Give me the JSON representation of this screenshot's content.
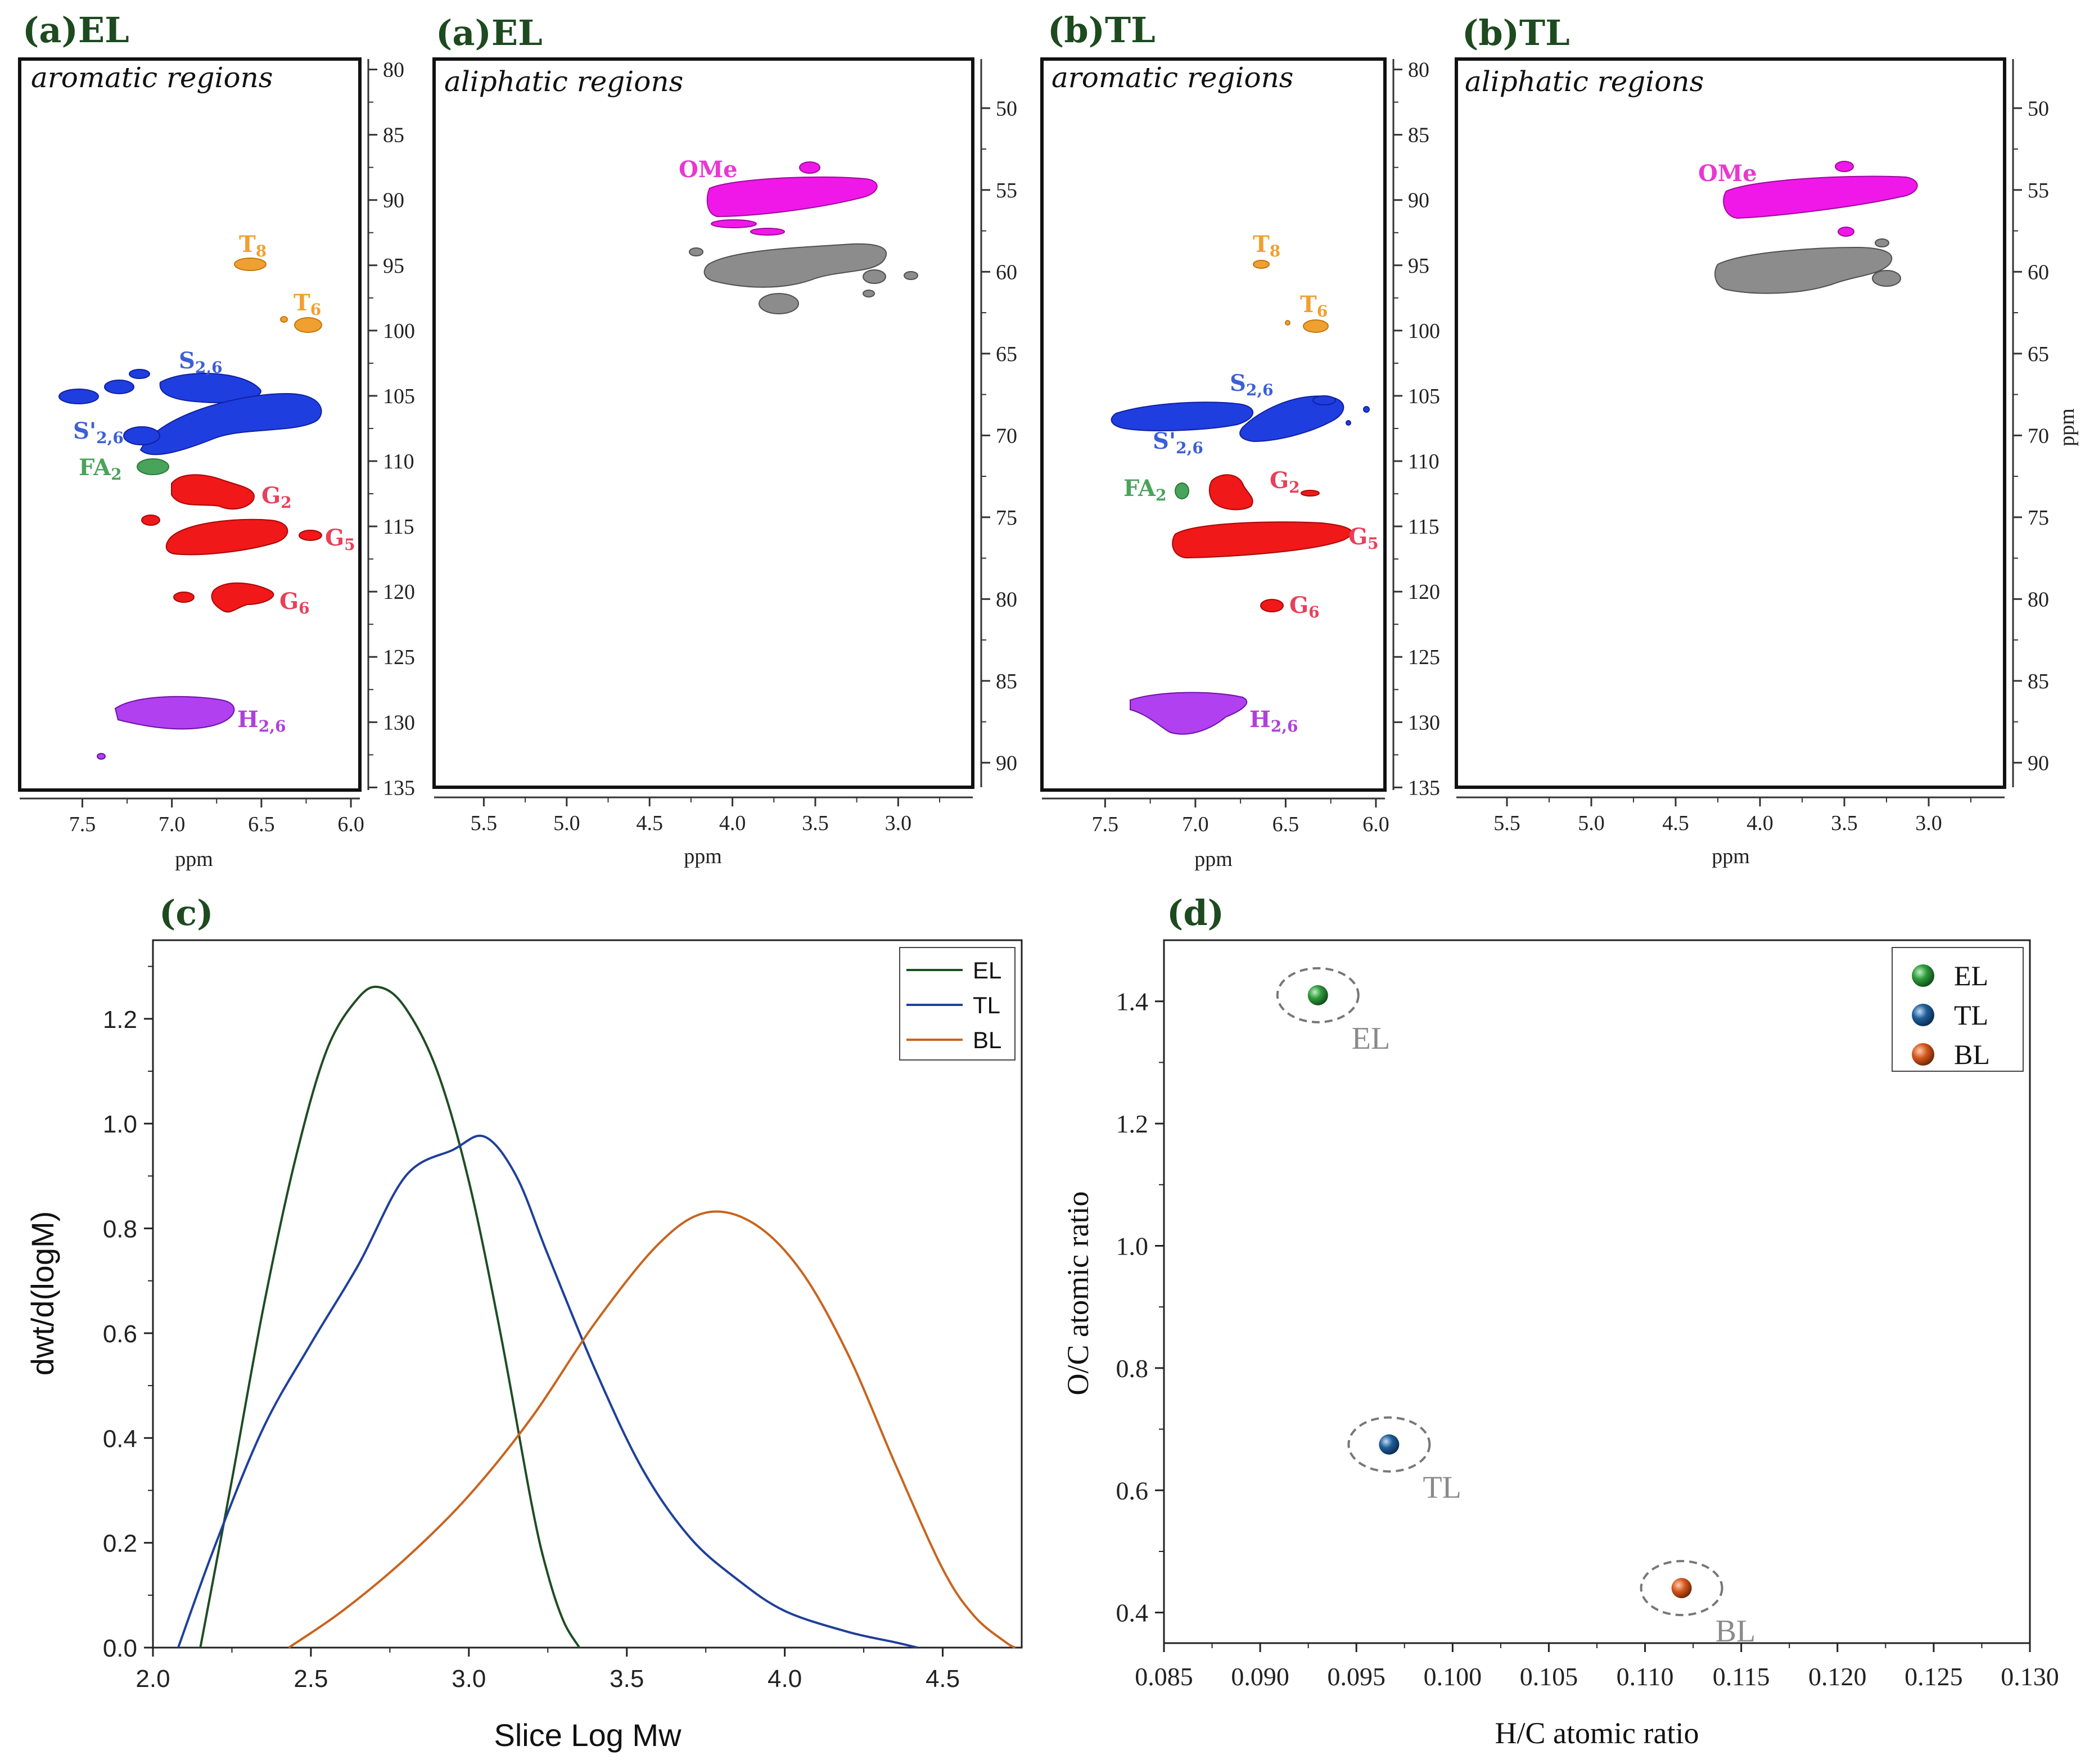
{
  "nmr_panels": [
    {
      "title": "(a)EL",
      "region": "aromatic regions",
      "xlabel": "ppm",
      "xticks": [
        "7.5",
        "7.0",
        "6.5",
        "6.0"
      ],
      "yticks": [
        "80",
        "85",
        "90",
        "95",
        "100",
        "105",
        "110",
        "115",
        "120",
        "125",
        "130",
        "135"
      ]
    },
    {
      "title": "(a)EL",
      "region": "aliphatic regions",
      "xlabel": "ppm",
      "xticks": [
        "5.5",
        "5.0",
        "4.5",
        "4.0",
        "3.5",
        "3.0"
      ],
      "yticks": [
        "50",
        "55",
        "60",
        "65",
        "70",
        "75",
        "80",
        "85",
        "90"
      ]
    },
    {
      "title": "(b)TL",
      "region": "aromatic regions",
      "xlabel": "ppm",
      "xticks": [
        "7.5",
        "7.0",
        "6.5",
        "6.0"
      ],
      "yticks": [
        "80",
        "85",
        "90",
        "95",
        "100",
        "105",
        "110",
        "115",
        "120",
        "125",
        "130",
        "135"
      ]
    },
    {
      "title": "(b)TL",
      "region": "aliphatic regions",
      "xlabel": "ppm",
      "ylabel": "ppm",
      "xticks": [
        "5.5",
        "5.0",
        "4.5",
        "4.0",
        "3.5",
        "3.0"
      ],
      "yticks": [
        "50",
        "55",
        "60",
        "65",
        "70",
        "75",
        "80",
        "85",
        "90"
      ]
    }
  ],
  "nmr_labels": {
    "el_arom": [
      {
        "main": "T",
        "sub": "8",
        "color": "#f0a030"
      },
      {
        "main": "T",
        "sub": "6",
        "color": "#f0a030"
      },
      {
        "main": "S",
        "sub": "2,6",
        "color": "#3b5fd8"
      },
      {
        "main": "S'",
        "sub": "2,6",
        "color": "#3b5fd8"
      },
      {
        "main": "FA",
        "sub": "2",
        "color": "#4aa35a"
      },
      {
        "main": "G",
        "sub": "2",
        "color": "#e8405a"
      },
      {
        "main": "G",
        "sub": "5",
        "color": "#e8405a"
      },
      {
        "main": "G",
        "sub": "6",
        "color": "#e8405a"
      },
      {
        "main": "H",
        "sub": "2,6",
        "color": "#b040d8"
      }
    ],
    "el_aliph": [
      {
        "main": "OMe",
        "sub": "",
        "color": "#e838d0"
      }
    ],
    "tl_arom": [
      {
        "main": "T",
        "sub": "8",
        "color": "#f0a030"
      },
      {
        "main": "T",
        "sub": "6",
        "color": "#f0a030"
      },
      {
        "main": "S",
        "sub": "2,6",
        "color": "#3b5fd8"
      },
      {
        "main": "S'",
        "sub": "2,6",
        "color": "#3b5fd8"
      },
      {
        "main": "FA",
        "sub": "2",
        "color": "#4aa35a"
      },
      {
        "main": "G",
        "sub": "2",
        "color": "#e8405a"
      },
      {
        "main": "G",
        "sub": "5",
        "color": "#e8405a"
      },
      {
        "main": "G",
        "sub": "6",
        "color": "#e8405a"
      },
      {
        "main": "H",
        "sub": "2,6",
        "color": "#b040d8"
      }
    ],
    "tl_aliph": [
      {
        "main": "OMe",
        "sub": "",
        "color": "#e838d0"
      }
    ]
  },
  "chart_data": [
    {
      "type": "line",
      "panel_label": "(c)",
      "xlabel": "Slice Log Mw",
      "ylabel": "dwt/d(logM)",
      "xlim": [
        2.0,
        4.75
      ],
      "ylim": [
        0.0,
        1.35
      ],
      "xticks": [
        "2.0",
        "2.5",
        "3.0",
        "3.5",
        "4.0",
        "4.5"
      ],
      "yticks": [
        "0.0",
        "0.2",
        "0.4",
        "0.6",
        "0.8",
        "1.0",
        "1.2"
      ],
      "series": [
        {
          "name": "EL",
          "color": "#1f4d24",
          "x": [
            2.15,
            2.25,
            2.35,
            2.45,
            2.55,
            2.65,
            2.72,
            2.8,
            2.9,
            3.0,
            3.1,
            3.2,
            3.25,
            3.3,
            3.35
          ],
          "y": [
            0.0,
            0.32,
            0.65,
            0.93,
            1.14,
            1.24,
            1.26,
            1.22,
            1.1,
            0.89,
            0.6,
            0.27,
            0.14,
            0.05,
            0.0
          ]
        },
        {
          "name": "TL",
          "color": "#1f3f9a",
          "x": [
            2.08,
            2.2,
            2.35,
            2.5,
            2.65,
            2.8,
            2.95,
            3.05,
            3.15,
            3.25,
            3.4,
            3.55,
            3.7,
            3.85,
            4.0,
            4.2,
            4.35,
            4.42
          ],
          "y": [
            0.0,
            0.2,
            0.42,
            0.58,
            0.73,
            0.9,
            0.95,
            0.975,
            0.9,
            0.75,
            0.53,
            0.34,
            0.21,
            0.13,
            0.07,
            0.03,
            0.01,
            0.0
          ]
        },
        {
          "name": "BL",
          "color": "#c8641e",
          "x": [
            2.43,
            2.6,
            2.8,
            3.0,
            3.2,
            3.4,
            3.6,
            3.75,
            3.9,
            4.05,
            4.2,
            4.35,
            4.5,
            4.6,
            4.7,
            4.73
          ],
          "y": [
            0.0,
            0.07,
            0.17,
            0.29,
            0.44,
            0.62,
            0.77,
            0.83,
            0.81,
            0.72,
            0.56,
            0.35,
            0.15,
            0.06,
            0.01,
            0.0
          ]
        }
      ],
      "legend": [
        "EL",
        "TL",
        "BL"
      ]
    },
    {
      "type": "scatter",
      "panel_label": "(d)",
      "xlabel": "H/C atomic ratio",
      "ylabel": "O/C atomic ratio",
      "xlim": [
        0.085,
        0.13
      ],
      "ylim": [
        0.35,
        1.5
      ],
      "xticks": [
        "0.085",
        "0.090",
        "0.095",
        "0.100",
        "0.105",
        "0.110",
        "0.115",
        "0.120",
        "0.125",
        "0.130"
      ],
      "yticks": [
        "0.4",
        "0.6",
        "0.8",
        "1.0",
        "1.2",
        "1.4"
      ],
      "points": [
        {
          "name": "EL",
          "x": 0.093,
          "y": 1.41,
          "color": "#2e9a3c"
        },
        {
          "name": "TL",
          "x": 0.0967,
          "y": 0.675,
          "color": "#1f5e9a"
        },
        {
          "name": "BL",
          "x": 0.1119,
          "y": 0.44,
          "color": "#d85a1e"
        }
      ],
      "legend": [
        "EL",
        "TL",
        "BL"
      ]
    }
  ]
}
